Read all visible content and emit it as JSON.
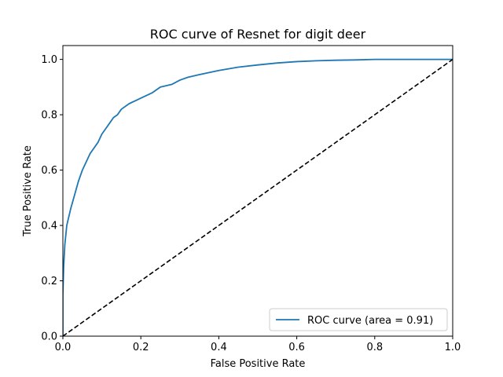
{
  "chart_data": {
    "type": "line",
    "title": "ROC curve of Resnet for digit deer",
    "xlabel": "False Positive Rate",
    "ylabel": "True Positive Rate",
    "xlim": [
      0.0,
      1.0
    ],
    "ylim": [
      0.0,
      1.05
    ],
    "grid": false,
    "legend_position": "lower-right",
    "x_ticks": [
      "0.0",
      "0.2",
      "0.4",
      "0.6",
      "0.8",
      "1.0"
    ],
    "y_ticks": [
      "0.0",
      "0.2",
      "0.4",
      "0.6",
      "0.8",
      "1.0"
    ],
    "series": [
      {
        "name": "ROC curve (area = 0.91)",
        "color": "#1f77b4",
        "style": "solid",
        "x": [
          0.0,
          0.0,
          0.002,
          0.005,
          0.01,
          0.015,
          0.02,
          0.03,
          0.04,
          0.05,
          0.06,
          0.07,
          0.08,
          0.09,
          0.1,
          0.11,
          0.12,
          0.13,
          0.14,
          0.15,
          0.17,
          0.2,
          0.23,
          0.25,
          0.28,
          0.3,
          0.32,
          0.35,
          0.4,
          0.45,
          0.5,
          0.55,
          0.6,
          0.65,
          0.7,
          0.75,
          0.8,
          0.9,
          1.0
        ],
        "y": [
          0.0,
          0.15,
          0.25,
          0.33,
          0.4,
          0.43,
          0.46,
          0.51,
          0.56,
          0.6,
          0.63,
          0.66,
          0.68,
          0.7,
          0.73,
          0.75,
          0.77,
          0.79,
          0.8,
          0.82,
          0.84,
          0.86,
          0.88,
          0.9,
          0.91,
          0.925,
          0.935,
          0.945,
          0.96,
          0.972,
          0.98,
          0.987,
          0.992,
          0.995,
          0.997,
          0.998,
          1.0,
          1.0,
          1.0
        ]
      },
      {
        "name": "",
        "color": "#000000",
        "style": "dashed",
        "x": [
          0.0,
          1.0
        ],
        "y": [
          0.0,
          1.0
        ]
      }
    ]
  }
}
